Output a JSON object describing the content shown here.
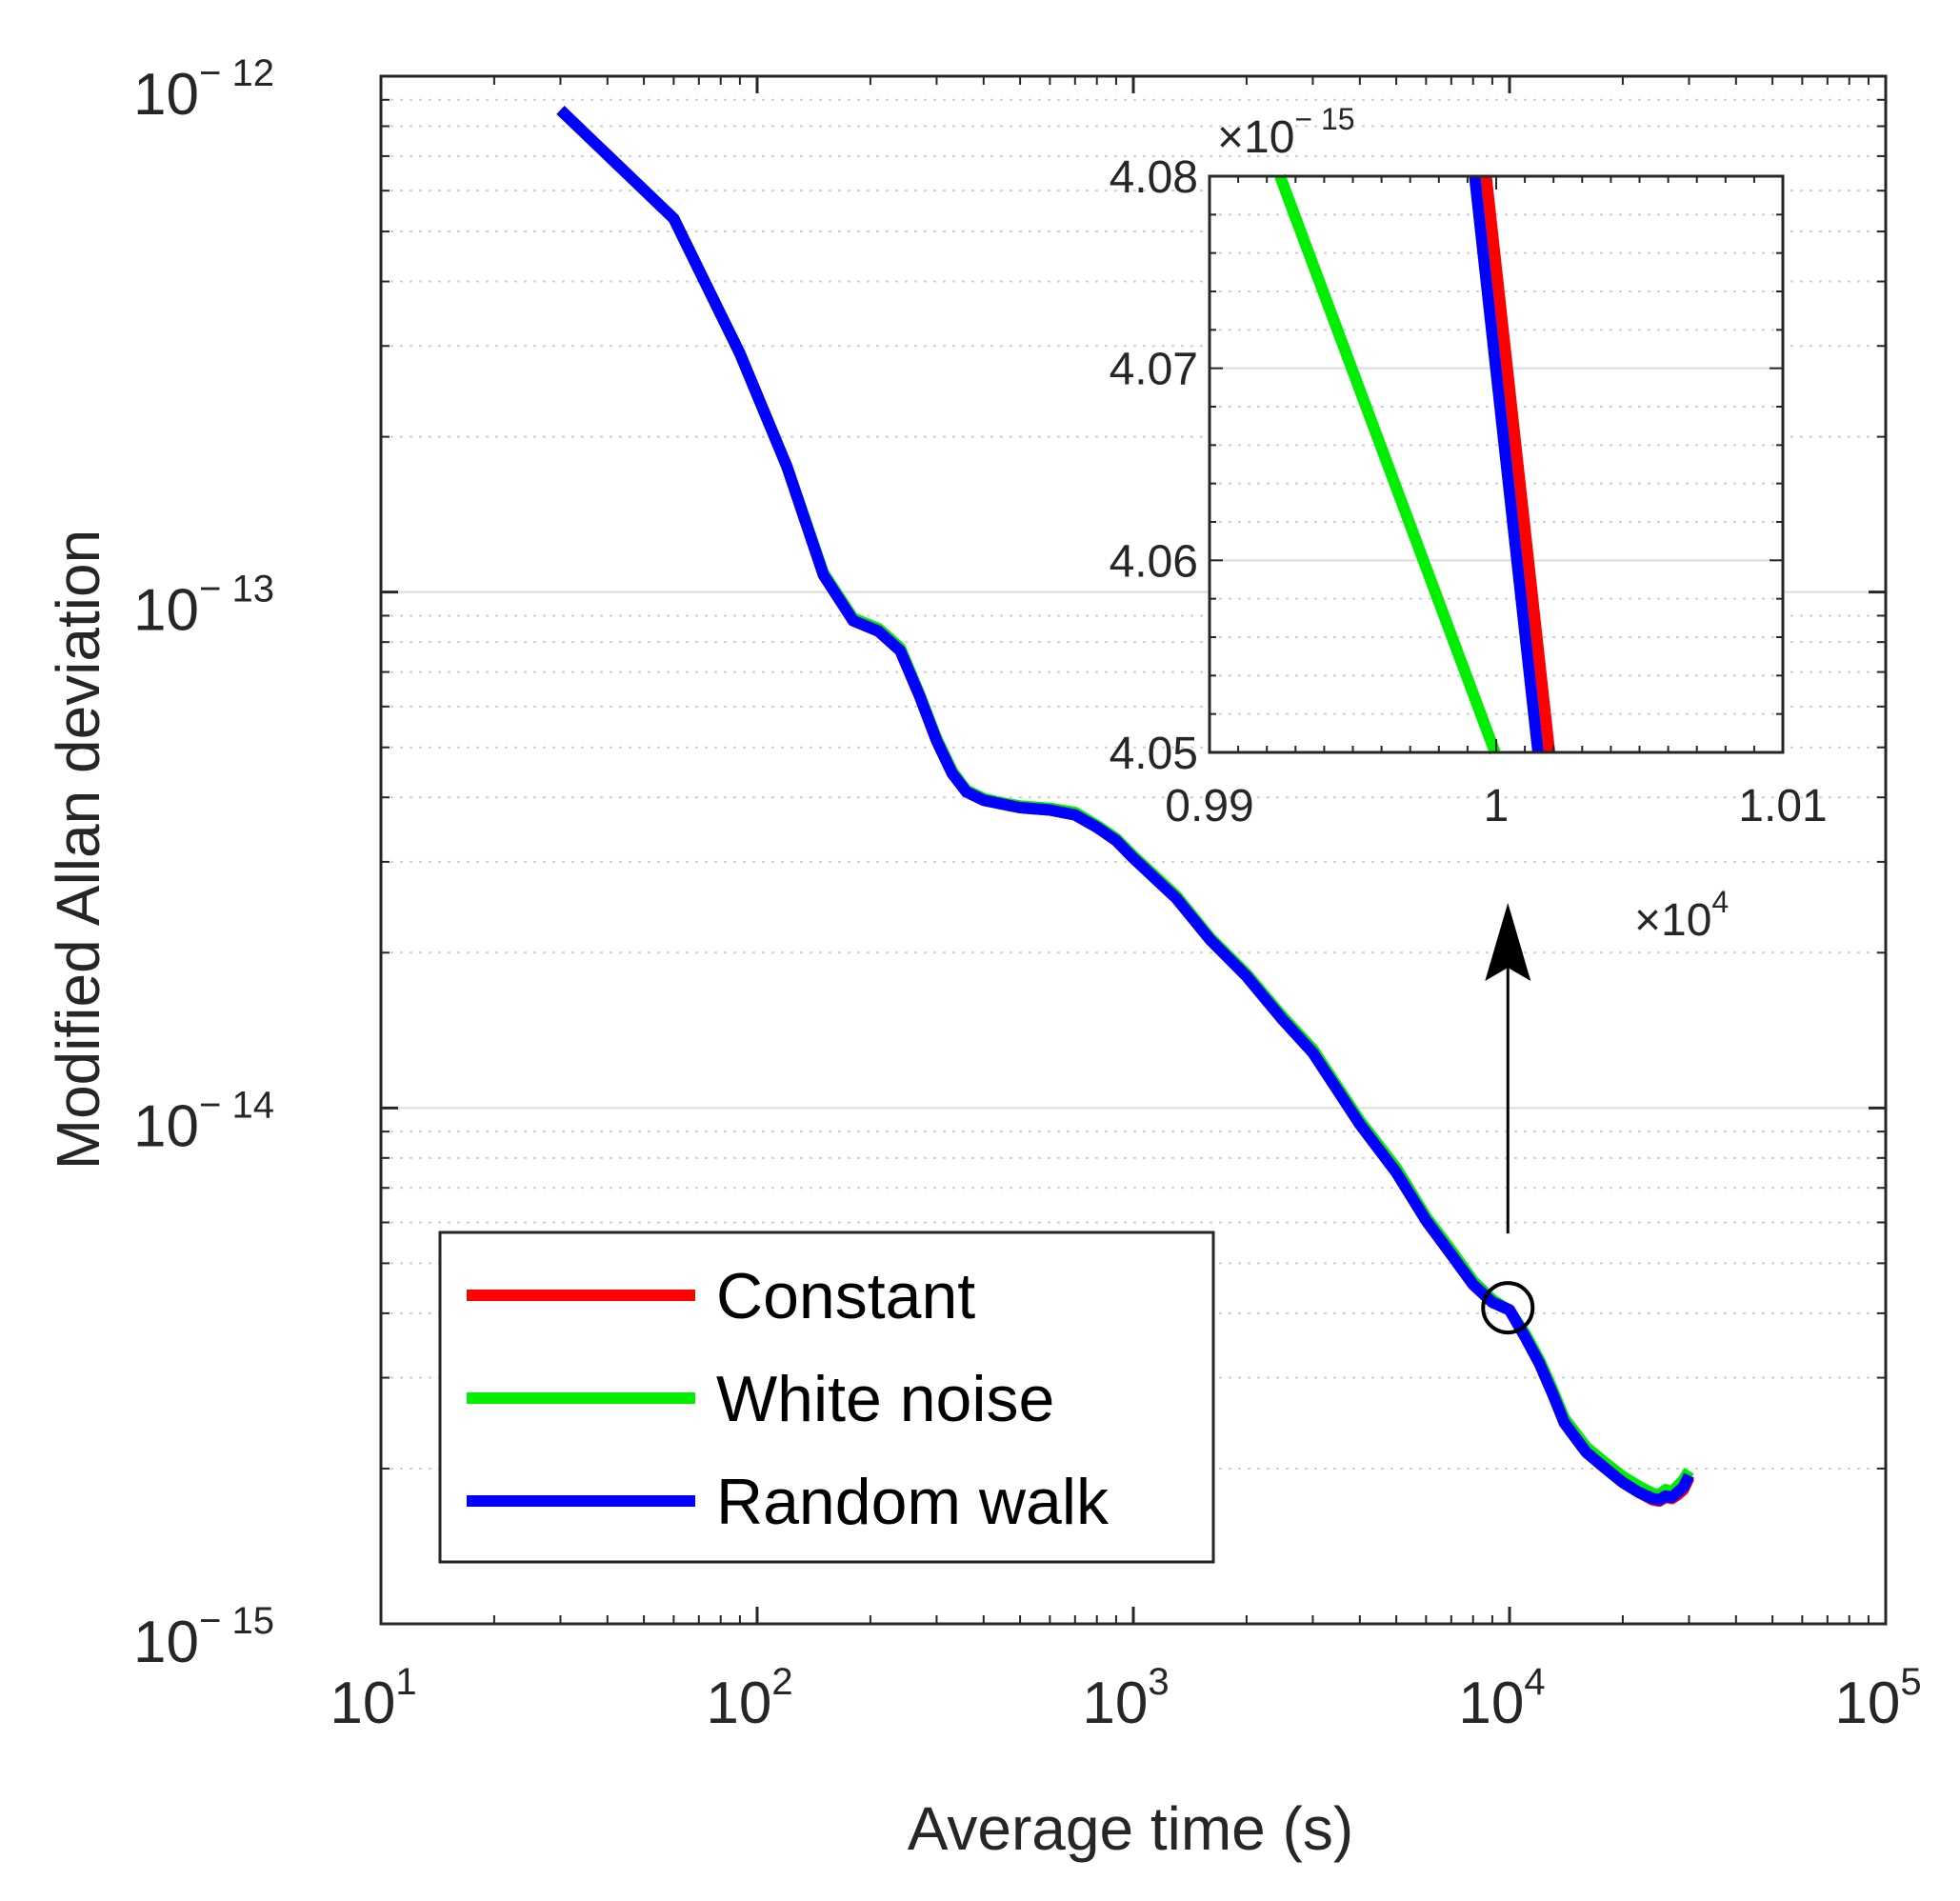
{
  "chart_data": [
    {
      "type": "line",
      "xscale": "log",
      "yscale": "log",
      "xlabel": "Average time (s)",
      "ylabel": "Modified Allan deviation",
      "xlim": [
        10,
        100000
      ],
      "ylim": [
        1e-15,
        1e-12
      ],
      "grid": true,
      "legend_position": "bottom-left",
      "x_ticks": [
        {
          "base": "10",
          "exp": "1"
        },
        {
          "base": "10",
          "exp": "2"
        },
        {
          "base": "10",
          "exp": "3"
        },
        {
          "base": "10",
          "exp": "4"
        },
        {
          "base": "10",
          "exp": "5"
        }
      ],
      "y_ticks": [
        {
          "base": "10",
          "exp": "− 15"
        },
        {
          "base": "10",
          "exp": "− 14"
        },
        {
          "base": "10",
          "exp": "− 13"
        },
        {
          "base": "10",
          "exp": "− 12"
        }
      ],
      "x": [
        30,
        60,
        90,
        120,
        150,
        180,
        210,
        240,
        270,
        300,
        330,
        360,
        400,
        450,
        500,
        600,
        700,
        800,
        900,
        1000,
        1300,
        1600,
        2000,
        2500,
        3000,
        4000,
        5000,
        6000,
        7000,
        8000,
        9000,
        10000,
        11000,
        12000,
        13000,
        14000,
        16000,
        18000,
        20000,
        22000,
        24000,
        25000,
        26000,
        27000,
        28000,
        29000,
        30000
      ],
      "series": [
        {
          "name": "Constant",
          "color": "#ff0000",
          "values": [
            8.6e-13,
            5.3e-13,
            2.9e-13,
            1.75e-13,
            1.08e-13,
            8.8e-14,
            8.4e-14,
            7.7e-14,
            6.3e-14,
            5.15e-14,
            4.45e-14,
            4.1e-14,
            3.95e-14,
            3.88e-14,
            3.82e-14,
            3.78e-14,
            3.7e-14,
            3.5e-14,
            3.3e-14,
            3.05e-14,
            2.55e-14,
            2.12e-14,
            1.8e-14,
            1.48e-14,
            1.28e-14,
            9.3e-15,
            7.5e-15,
            6.05e-15,
            5.2e-15,
            4.55e-15,
            4.2e-15,
            4.06e-15,
            3.6e-15,
            3.2e-15,
            2.8e-15,
            2.45e-15,
            2.15e-15,
            2e-15,
            1.88e-15,
            1.8e-15,
            1.74e-15,
            1.73e-15,
            1.76e-15,
            1.75e-15,
            1.78e-15,
            1.82e-15,
            1.92e-15
          ]
        },
        {
          "name": "White noise",
          "color": "#00ee00",
          "values": [
            8.6e-13,
            5.3e-13,
            2.9e-13,
            1.75e-13,
            1.09e-13,
            8.9e-14,
            8.5e-14,
            7.8e-14,
            6.35e-14,
            5.2e-14,
            4.5e-14,
            4.13e-14,
            3.98e-14,
            3.9e-14,
            3.85e-14,
            3.81e-14,
            3.74e-14,
            3.53e-14,
            3.33e-14,
            3.08e-14,
            2.58e-14,
            2.14e-14,
            1.82e-14,
            1.5e-14,
            1.3e-14,
            9.45e-15,
            7.65e-15,
            6.15e-15,
            5.3e-15,
            4.62e-15,
            4.25e-15,
            4.05e-15,
            3.65e-15,
            3.25e-15,
            2.85e-15,
            2.5e-15,
            2.2e-15,
            2.05e-15,
            1.93e-15,
            1.85e-15,
            1.79e-15,
            1.78e-15,
            1.82e-15,
            1.8e-15,
            1.85e-15,
            1.9e-15,
            1.98e-15
          ]
        },
        {
          "name": "Random walk",
          "color": "#0000ff",
          "values": [
            8.6e-13,
            5.3e-13,
            2.9e-13,
            1.75e-13,
            1.08e-13,
            8.8e-14,
            8.4e-14,
            7.7e-14,
            6.3e-14,
            5.15e-14,
            4.45e-14,
            4.1e-14,
            3.95e-14,
            3.88e-14,
            3.82e-14,
            3.78e-14,
            3.7e-14,
            3.5e-14,
            3.3e-14,
            3.05e-14,
            2.55e-14,
            2.12e-14,
            1.8e-14,
            1.48e-14,
            1.28e-14,
            9.3e-15,
            7.5e-15,
            6.05e-15,
            5.2e-15,
            4.55e-15,
            4.2e-15,
            4.06e-15,
            3.6e-15,
            3.2e-15,
            2.8e-15,
            2.45e-15,
            2.15e-15,
            2e-15,
            1.88e-15,
            1.8e-15,
            1.75e-15,
            1.74e-15,
            1.77e-15,
            1.76e-15,
            1.8e-15,
            1.84e-15,
            1.94e-15
          ]
        }
      ],
      "annotation": {
        "type": "circle-with-arrow",
        "x": 9900,
        "y": 4.1e-15,
        "points_to": "inset"
      }
    },
    {
      "type": "line",
      "role": "inset",
      "xlim": [
        0.99,
        1.01
      ],
      "ylim": [
        4.05,
        4.08
      ],
      "x_multiplier": {
        "text": "×10",
        "exp": "4"
      },
      "y_multiplier": {
        "text": "×10",
        "exp": "− 15"
      },
      "x_ticks": [
        "0.99",
        "1",
        "1.01"
      ],
      "y_ticks": [
        "4.05",
        "4.06",
        "4.07",
        "4.08"
      ],
      "grid": true,
      "series": [
        {
          "name": "Constant",
          "color": "#ff0000",
          "x": [
            0.99965,
            1.00186
          ],
          "y": [
            4.08,
            4.05
          ]
        },
        {
          "name": "White noise",
          "color": "#00ee00",
          "x": [
            0.99246,
            0.99996
          ],
          "y": [
            4.08,
            4.05
          ]
        },
        {
          "name": "Random walk",
          "color": "#0000ff",
          "x": [
            0.99925,
            1.00146
          ],
          "y": [
            4.08,
            4.05
          ]
        }
      ]
    }
  ],
  "legend": {
    "items": [
      {
        "label": "Constant",
        "color": "#ff0000"
      },
      {
        "label": "White noise",
        "color": "#00ee00"
      },
      {
        "label": "Random walk",
        "color": "#0000ff"
      }
    ]
  }
}
